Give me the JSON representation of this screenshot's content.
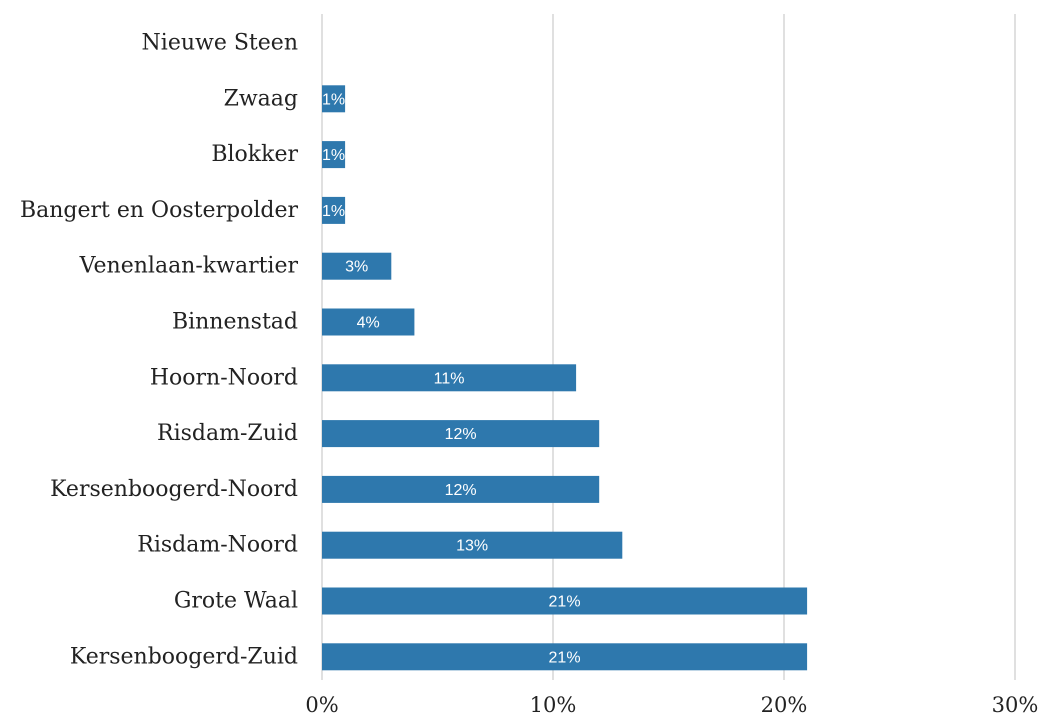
{
  "chart_data": {
    "type": "bar",
    "orientation": "horizontal",
    "categories": [
      "Nieuwe Steen",
      "Zwaag",
      "Blokker",
      "Bangert en Oosterpolder",
      "Venenlaan-kwartier",
      "Binnenstad",
      "Hoorn-Noord",
      "Risdam-Zuid",
      "Kersenboogerd-Noord",
      "Risdam-Noord",
      "Grote Waal",
      "Kersenboogerd-Zuid"
    ],
    "values": [
      0,
      1,
      1,
      1,
      3,
      4,
      11,
      12,
      12,
      13,
      21,
      21
    ],
    "data_labels": [
      "",
      "1%",
      "1%",
      "1%",
      "3%",
      "4%",
      "11%",
      "12%",
      "12%",
      "13%",
      "21%",
      "21%"
    ],
    "xlim": [
      0,
      30
    ],
    "x_ticks": [
      0,
      10,
      20,
      30
    ],
    "x_tick_labels": [
      "0%",
      "10%",
      "20%",
      "30%"
    ],
    "title": "",
    "xlabel": "",
    "ylabel": "",
    "grid": "vertical",
    "bar_color": "#2e78ad",
    "grid_color": "#d6d6d6"
  }
}
